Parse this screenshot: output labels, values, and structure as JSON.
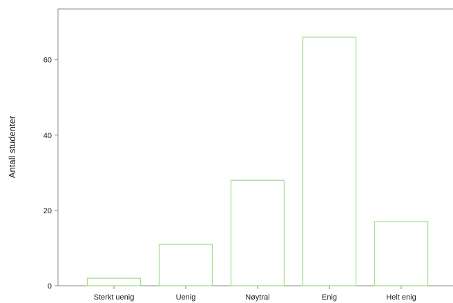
{
  "chart_data": {
    "type": "bar",
    "title": "",
    "xlabel": "",
    "ylabel": "Antall studenter",
    "categories": [
      "Sterkt uenig",
      "Uenig",
      "Nøytral",
      "Enig",
      "Helt enig"
    ],
    "values": [
      2,
      11,
      28,
      66,
      17
    ],
    "ylim": [
      0,
      73.5
    ],
    "yticks": [
      0,
      20,
      40,
      60
    ],
    "grid": false,
    "legend": "none",
    "colors": {
      "bar_stroke": "#a8dc8f",
      "bar_fill": "#ffffff",
      "axis": "#888888"
    }
  }
}
